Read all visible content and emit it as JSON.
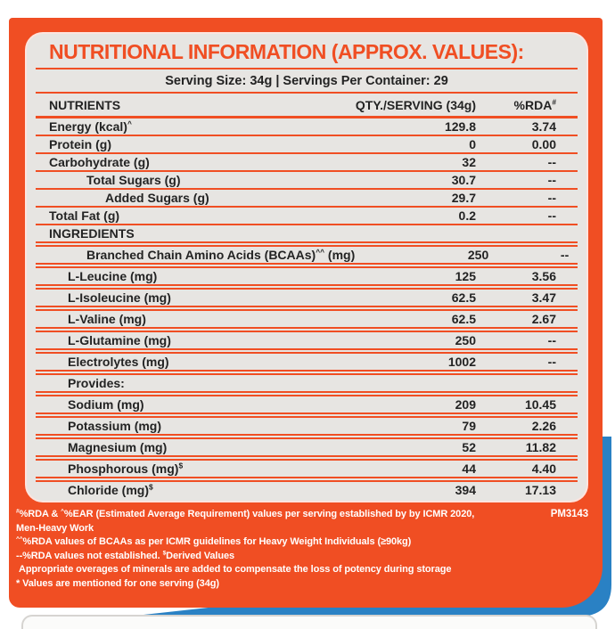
{
  "colors": {
    "orange": "#F04E23",
    "blue": "#2A81C4",
    "panel_gray": "#E7E5E2",
    "text_dark": "#232323",
    "footnote_text": "#FFFFFF"
  },
  "header": {
    "title": "NUTRITIONAL INFORMATION (APPROX. VALUES):",
    "serving_info": "Serving Size: 34g | Servings Per Container: 29"
  },
  "table": {
    "col_nutrients": "NUTRIENTS",
    "col_qty": "QTY./SERVING (34g)",
    "col_rda": "%RDA{#}",
    "rows": [
      {
        "label": "Energy (kcal){^}",
        "qty": "129.8",
        "rda": "3.74",
        "indent": 0,
        "sep": "single"
      },
      {
        "label": "Protein (g)",
        "qty": "0",
        "rda": "0.00",
        "indent": 0,
        "sep": "single"
      },
      {
        "label": "Carbohydrate (g)",
        "qty": "32",
        "rda": "--",
        "indent": 0,
        "sep": "single"
      },
      {
        "label": "Total Sugars (g)",
        "qty": "30.7",
        "rda": "--",
        "indent": 2,
        "sep": "single"
      },
      {
        "label": "Added Sugars (g)",
        "qty": "29.7",
        "rda": "--",
        "indent": 3,
        "sep": "single"
      },
      {
        "label": "Total Fat (g)",
        "qty": "0.2",
        "rda": "--",
        "indent": 0,
        "sep": "single"
      },
      {
        "label": "INGREDIENTS",
        "qty": "",
        "rda": "",
        "indent": 0,
        "sep": "single"
      },
      {
        "label": "Branched Chain Amino Acids (BCAAs){^^} (mg)",
        "qty": "250",
        "rda": "--",
        "indent": 2,
        "sep": "double"
      },
      {
        "label": "L-Leucine (mg)",
        "qty": "125",
        "rda": "3.56",
        "indent": 1,
        "sep": "double"
      },
      {
        "label": "L-Isoleucine (mg)",
        "qty": "62.5",
        "rda": "3.47",
        "indent": 1,
        "sep": "double"
      },
      {
        "label": "L-Valine (mg)",
        "qty": "62.5",
        "rda": "2.67",
        "indent": 1,
        "sep": "double"
      },
      {
        "label": "L-Glutamine (mg)",
        "qty": "250",
        "rda": "--",
        "indent": 1,
        "sep": "double"
      },
      {
        "label": "Electrolytes (mg)",
        "qty": "1002",
        "rda": "--",
        "indent": 1,
        "sep": "double"
      },
      {
        "label": "Provides:",
        "qty": "",
        "rda": "",
        "indent": 1,
        "sep": "double"
      },
      {
        "label": "Sodium (mg)",
        "qty": "209",
        "rda": "10.45",
        "indent": 1,
        "sep": "double"
      },
      {
        "label": "Potassium (mg)",
        "qty": "79",
        "rda": "2.26",
        "indent": 1,
        "sep": "double"
      },
      {
        "label": "Magnesium (mg)",
        "qty": "52",
        "rda": "11.82",
        "indent": 1,
        "sep": "double"
      },
      {
        "label": "Phosphorous (mg){$}",
        "qty": "44",
        "rda": "4.40",
        "indent": 1,
        "sep": "double"
      },
      {
        "label": "Chloride (mg){$}",
        "qty": "394",
        "rda": "17.13",
        "indent": 1,
        "sep": "double"
      }
    ]
  },
  "footnotes": {
    "code": "PM3143",
    "lines": [
      "{#}%RDA & {^}%EAR (Estimated Average Requirement) values per serving established by by ICMR 2020,",
      "Men-Heavy Work",
      "{^^}%RDA values of BCAAs as per ICMR guidelines for Heavy Weight Individuals (≥90kg)",
      "--%RDA values not established. {$}Derived Values",
      " Appropriate overages of minerals are added to compensate the loss of potency during storage",
      "* Values are mentioned for one serving (34g)"
    ]
  }
}
